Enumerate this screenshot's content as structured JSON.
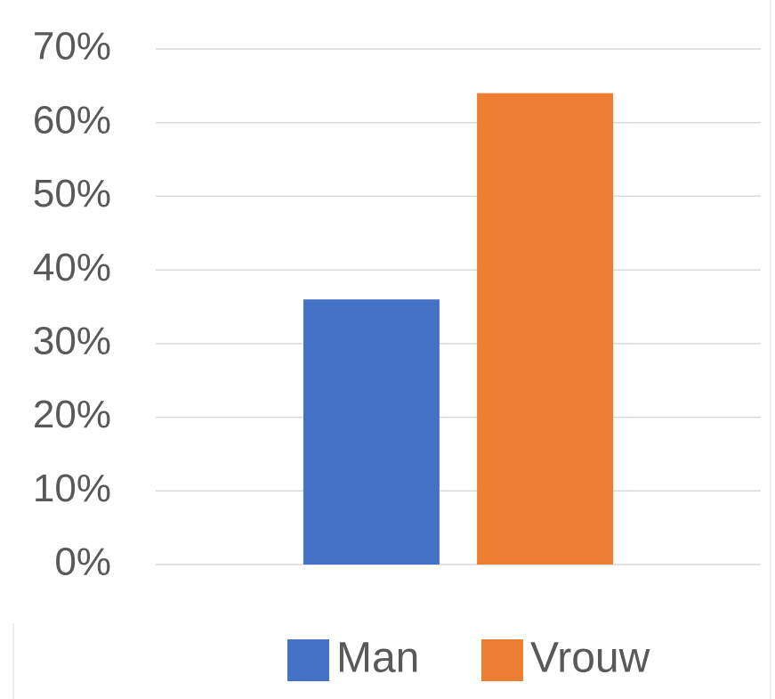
{
  "chart_data": {
    "type": "bar",
    "categories": [
      null
    ],
    "series": [
      {
        "name": "Man",
        "color": "#4472c4",
        "values": [
          36
        ]
      },
      {
        "name": "Vrouw",
        "color": "#ed7d31",
        "values": [
          64
        ]
      }
    ],
    "ylim": [
      0,
      70
    ],
    "yticks": [
      {
        "value": 0,
        "label": "0%"
      },
      {
        "value": 10,
        "label": "10%"
      },
      {
        "value": 20,
        "label": "20%"
      },
      {
        "value": 30,
        "label": "30%"
      },
      {
        "value": 40,
        "label": "40%"
      },
      {
        "value": 50,
        "label": "50%"
      },
      {
        "value": 60,
        "label": "60%"
      },
      {
        "value": 70,
        "label": "70%"
      }
    ],
    "grid": true,
    "legend": "bottom"
  }
}
